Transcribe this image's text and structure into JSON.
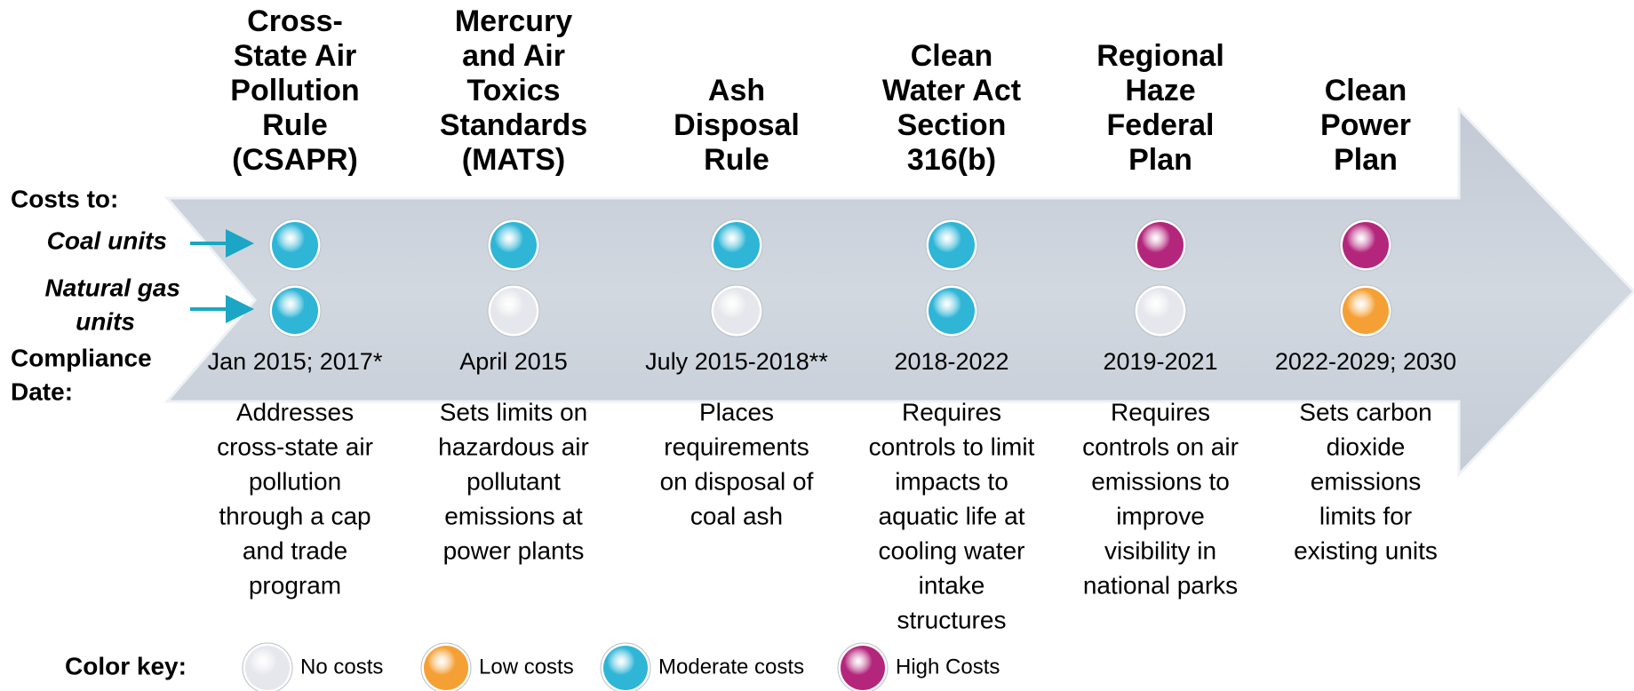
{
  "labels": {
    "costs_to": "Costs to:",
    "coal_units": "Coal units",
    "gas_units": [
      "Natural gas",
      "units"
    ],
    "compliance": [
      "Compliance",
      "Date:"
    ]
  },
  "rules": [
    {
      "title": [
        "Cross-",
        "State Air",
        "Pollution",
        "Rule",
        "(CSAPR)"
      ],
      "coal": 2,
      "gas": 2,
      "date": "Jan 2015; 2017*",
      "description": [
        "Addresses",
        "cross-state air",
        "pollution",
        "through a cap",
        "and trade",
        "program"
      ]
    },
    {
      "title": [
        "Mercury",
        "and Air",
        "Toxics",
        "Standards",
        "(MATS)"
      ],
      "coal": 2,
      "gas": 0,
      "date": "April 2015",
      "description": [
        "Sets limits on",
        "hazardous air",
        "pollutant",
        "emissions at",
        "power plants"
      ]
    },
    {
      "title": [
        "Ash",
        "Disposal",
        "Rule"
      ],
      "coal": 2,
      "gas": 0,
      "date": "July 2015-2018**",
      "description": [
        "Places",
        "requirements",
        "on disposal of",
        "coal ash"
      ]
    },
    {
      "title": [
        "Clean",
        "Water Act",
        "Section",
        "316(b)"
      ],
      "coal": 2,
      "gas": 2,
      "date": "2018-2022",
      "description": [
        "Requires",
        "controls to limit",
        "impacts to",
        "aquatic life at",
        "cooling water",
        "intake",
        "structures"
      ]
    },
    {
      "title": [
        "Regional",
        "Haze",
        "Federal",
        "Plan"
      ],
      "coal": 3,
      "gas": 0,
      "date": "2019-2021",
      "description": [
        "Requires",
        "controls on air",
        "emissions to",
        "improve",
        "visibility in",
        "national parks"
      ]
    },
    {
      "title": [
        "Clean",
        "Power",
        "Plan"
      ],
      "coal": 3,
      "gas": 1,
      "date": "2022-2029; 2030",
      "description": [
        "Sets carbon",
        "dioxide",
        "emissions",
        "limits for",
        "existing units"
      ]
    }
  ],
  "color_key": {
    "title": "Color key:",
    "items": [
      {
        "label": "No costs",
        "color": "#e6e7ec"
      },
      {
        "label": "Low costs",
        "color": "#f5a035"
      },
      {
        "label": "Moderate costs",
        "color": "#2fb5d6"
      },
      {
        "label": "High Costs",
        "color": "#b4267c"
      }
    ]
  }
}
